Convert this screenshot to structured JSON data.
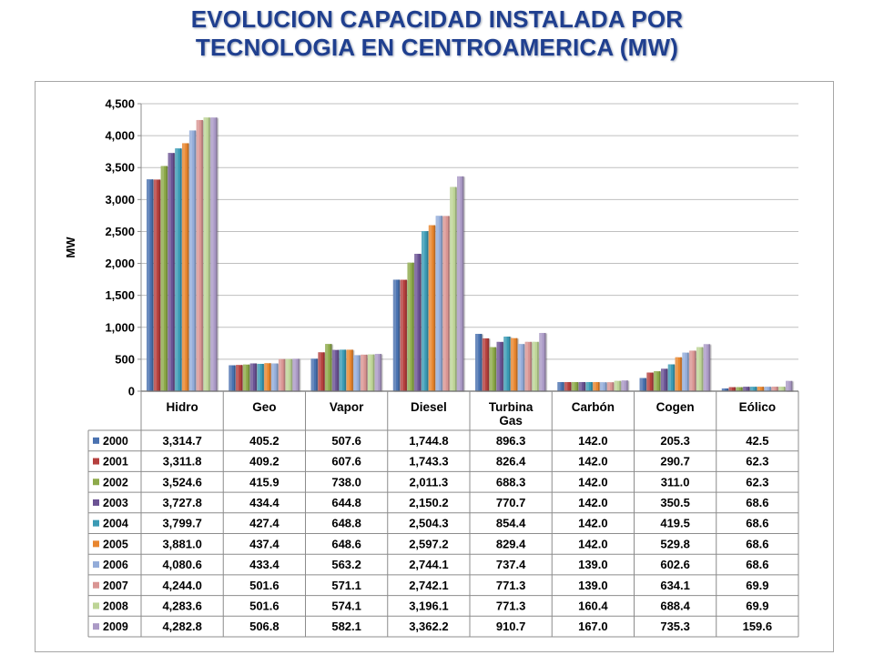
{
  "title_lines": [
    "EVOLUCION CAPACIDAD INSTALADA POR",
    "TECNOLOGIA EN CENTROAMERICA (MW)"
  ],
  "chart_data": {
    "type": "bar",
    "title": "EVOLUCION CAPACIDAD INSTALADA POR TECNOLOGIA EN CENTROAMERICA (MW)",
    "ylabel": "MW",
    "xlabel": "",
    "ylim": [
      0,
      4500
    ],
    "yticks": [
      "0",
      "500",
      "1,000",
      "1,500",
      "2,000",
      "2,500",
      "3,000",
      "3,500",
      "4,000",
      "4,500"
    ],
    "grid": true,
    "legend": "data-table-left",
    "categories": [
      "Hidro",
      "Geo",
      "Vapor",
      "Diesel",
      "Turbina Gas",
      "Carbón",
      "Cogen",
      "Eólico"
    ],
    "series": [
      {
        "name": "2000",
        "color": "#4a72b0",
        "values": [
          3314.7,
          405.2,
          507.6,
          1744.8,
          896.3,
          142.0,
          205.3,
          42.5
        ],
        "labels": [
          "3,314.7",
          "405.2",
          "507.6",
          "1,744.8",
          "896.3",
          "142.0",
          "205.3",
          "42.5"
        ]
      },
      {
        "name": "2001",
        "color": "#b5403e",
        "values": [
          3311.8,
          409.2,
          607.6,
          1743.3,
          826.4,
          142.0,
          290.7,
          62.3
        ],
        "labels": [
          "3,311.8",
          "409.2",
          "607.6",
          "1,743.3",
          "826.4",
          "142.0",
          "290.7",
          "62.3"
        ]
      },
      {
        "name": "2002",
        "color": "#8daa4a",
        "values": [
          3524.6,
          415.9,
          738.0,
          2011.3,
          688.3,
          142.0,
          311.0,
          62.3
        ],
        "labels": [
          "3,524.6",
          "415.9",
          "738.0",
          "2,011.3",
          "688.3",
          "142.0",
          "311.0",
          "62.3"
        ]
      },
      {
        "name": "2003",
        "color": "#6b5394",
        "values": [
          3727.8,
          434.4,
          644.8,
          2150.2,
          770.7,
          142.0,
          350.5,
          68.6
        ],
        "labels": [
          "3,727.8",
          "434.4",
          "644.8",
          "2,150.2",
          "770.7",
          "142.0",
          "350.5",
          "68.6"
        ]
      },
      {
        "name": "2004",
        "color": "#3b9bb5",
        "values": [
          3799.7,
          427.4,
          648.8,
          2504.3,
          854.4,
          142.0,
          419.5,
          68.6
        ],
        "labels": [
          "3,799.7",
          "427.4",
          "648.8",
          "2,504.3",
          "854.4",
          "142.0",
          "419.5",
          "68.6"
        ]
      },
      {
        "name": "2005",
        "color": "#e8862f",
        "values": [
          3881.0,
          437.4,
          648.6,
          2597.2,
          829.4,
          142.0,
          529.8,
          68.6
        ],
        "labels": [
          "3,881.0",
          "437.4",
          "648.6",
          "2,597.2",
          "829.4",
          "142.0",
          "529.8",
          "68.6"
        ]
      },
      {
        "name": "2006",
        "color": "#93acd9",
        "values": [
          4080.6,
          433.4,
          563.2,
          2744.1,
          737.4,
          139.0,
          602.6,
          68.6
        ],
        "labels": [
          "4,080.6",
          "433.4",
          "563.2",
          "2,744.1",
          "737.4",
          "139.0",
          "602.6",
          "68.6"
        ]
      },
      {
        "name": "2007",
        "color": "#d99593",
        "values": [
          4244.0,
          501.6,
          571.1,
          2742.1,
          771.3,
          139.0,
          634.1,
          69.9
        ],
        "labels": [
          "4,244.0",
          "501.6",
          "571.1",
          "2,742.1",
          "771.3",
          "139.0",
          "634.1",
          "69.9"
        ]
      },
      {
        "name": "2008",
        "color": "#bdd496",
        "values": [
          4283.6,
          501.6,
          574.1,
          3196.1,
          771.3,
          160.4,
          688.4,
          69.9
        ],
        "labels": [
          "4,283.6",
          "501.6",
          "574.1",
          "3,196.1",
          "771.3",
          "160.4",
          "688.4",
          "69.9"
        ]
      },
      {
        "name": "2009",
        "color": "#ab9ac6",
        "values": [
          4282.8,
          506.8,
          582.1,
          3362.2,
          910.7,
          167.0,
          735.3,
          159.6
        ],
        "labels": [
          "4,282.8",
          "506.8",
          "582.1",
          "3,362.2",
          "910.7",
          "167.0",
          "735.3",
          "159.6"
        ]
      }
    ]
  }
}
